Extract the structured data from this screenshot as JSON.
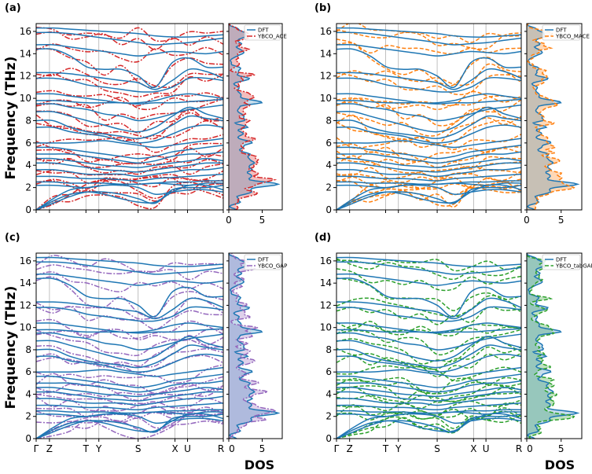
{
  "ylabel": "Frequency (THz)",
  "dos_label": "DOS",
  "panels": [
    {
      "label": "(a)",
      "series": [
        "DFT",
        "YBCO_ACE"
      ]
    },
    {
      "label": "(b)",
      "series": [
        "DFT",
        "YBCO_MACE"
      ]
    },
    {
      "label": "(c)",
      "series": [
        "DFT",
        "YBCO_GAP"
      ]
    },
    {
      "label": "(d)",
      "series": [
        "DFT",
        "YBCO_tabGAP"
      ]
    }
  ],
  "chart_data": [
    {
      "type": "line",
      "panel": "(a)",
      "ylabel": "Frequency (THz)",
      "xlabel": "",
      "ylim": [
        0,
        16.7
      ],
      "y_ticks": [
        0,
        2,
        4,
        6,
        8,
        10,
        12,
        14,
        16
      ],
      "x_ticks": [],
      "dos_xlim": [
        0,
        8
      ],
      "dos_ticks": [
        0,
        5
      ],
      "dos_xlabel": "DOS",
      "legend": "top-right",
      "series": [
        {
          "name": "DFT",
          "color": "#1f77b4",
          "style": "solid"
        },
        {
          "name": "YBCO_ACE",
          "color": "#d62728",
          "style": "dashdot"
        }
      ]
    },
    {
      "type": "line",
      "panel": "(b)",
      "ylabel": "",
      "xlabel": "",
      "ylim": [
        0,
        16.7
      ],
      "y_ticks": [
        0,
        2,
        4,
        6,
        8,
        10,
        12,
        14,
        16
      ],
      "x_ticks": [],
      "dos_xlim": [
        0,
        8
      ],
      "dos_ticks": [
        0,
        5
      ],
      "dos_xlabel": "",
      "legend": "top-right",
      "series": [
        {
          "name": "DFT",
          "color": "#1f77b4",
          "style": "solid"
        },
        {
          "name": "YBCO_MACE",
          "color": "#ff7f0e",
          "style": "dashed"
        }
      ]
    },
    {
      "type": "line",
      "panel": "(c)",
      "ylabel": "Frequency (THz)",
      "xlabel": "",
      "ylim": [
        0,
        16.7
      ],
      "y_ticks": [
        0,
        2,
        4,
        6,
        8,
        10,
        12,
        14,
        16
      ],
      "x_ticks": [
        "Γ",
        "Z",
        "T",
        "Y",
        "S",
        "X",
        "U",
        "R"
      ],
      "dos_xlim": [
        0,
        8
      ],
      "dos_ticks": [
        0,
        5
      ],
      "dos_xlabel": "DOS",
      "legend": "top-right",
      "series": [
        {
          "name": "DFT",
          "color": "#1f77b4",
          "style": "solid"
        },
        {
          "name": "YBCO_GAP",
          "color": "#9467bd",
          "style": "dashdot"
        }
      ]
    },
    {
      "type": "line",
      "panel": "(d)",
      "ylabel": "",
      "xlabel": "",
      "ylim": [
        0,
        16.7
      ],
      "y_ticks": [
        0,
        2,
        4,
        6,
        8,
        10,
        12,
        14,
        16
      ],
      "x_ticks": [
        "Γ",
        "Z",
        "T",
        "Y",
        "S",
        "X",
        "U",
        "R"
      ],
      "dos_xlim": [
        0,
        8
      ],
      "dos_ticks": [
        0,
        5
      ],
      "dos_xlabel": "DOS",
      "legend": "top-right",
      "series": [
        {
          "name": "DFT",
          "color": "#1f77b4",
          "style": "solid"
        },
        {
          "name": "YBCO_tabGAP",
          "color": "#2ca02c",
          "style": "dashed"
        }
      ]
    }
  ],
  "dft_bands": [
    [
      16.3,
      16.3,
      16.2,
      16.1,
      16.0,
      15.9,
      15.8,
      15.6,
      15.5,
      15.5,
      15.6,
      15.7
    ],
    [
      15.9,
      15.9,
      15.8,
      15.6,
      15.4,
      15.2,
      15.0,
      14.8,
      14.9,
      15.0,
      15.2,
      15.4
    ],
    [
      14.8,
      14.8,
      14.6,
      14.4,
      14.2,
      14.0,
      13.8,
      14.0,
      14.2,
      14.1,
      14.0,
      14.2
    ],
    [
      14.4,
      14.4,
      13.8,
      12.8,
      12.6,
      12.6,
      12.0,
      11.0,
      13.2,
      13.6,
      12.8,
      12.8
    ],
    [
      12.3,
      12.3,
      12.2,
      12.0,
      11.8,
      11.6,
      11.4,
      10.8,
      11.6,
      12.6,
      12.4,
      11.8
    ],
    [
      11.8,
      11.8,
      11.6,
      11.2,
      11.0,
      10.8,
      10.6,
      10.6,
      11.0,
      11.8,
      11.8,
      11.6
    ],
    [
      10.4,
      10.4,
      10.2,
      10.0,
      9.8,
      9.6,
      9.6,
      9.8,
      10.2,
      10.4,
      10.2,
      10.0
    ],
    [
      9.8,
      9.8,
      9.7,
      9.6,
      9.6,
      9.6,
      9.5,
      9.6,
      9.6,
      9.7,
      9.8,
      9.9
    ],
    [
      9.5,
      9.5,
      9.2,
      9.0,
      8.6,
      8.4,
      8.0,
      8.2,
      8.6,
      9.0,
      9.2,
      9.4
    ],
    [
      8.8,
      8.8,
      8.4,
      8.0,
      7.6,
      7.2,
      7.0,
      7.4,
      8.4,
      9.2,
      8.6,
      8.2
    ],
    [
      8.0,
      8.0,
      7.4,
      7.0,
      6.8,
      6.6,
      6.4,
      6.8,
      7.6,
      8.4,
      8.2,
      8.0
    ],
    [
      7.4,
      7.4,
      7.0,
      6.8,
      6.6,
      6.2,
      6.0,
      6.2,
      6.8,
      7.4,
      7.6,
      7.4
    ],
    [
      6.0,
      6.0,
      6.0,
      6.1,
      6.2,
      6.0,
      5.8,
      5.6,
      5.8,
      6.0,
      6.2,
      6.4
    ],
    [
      5.6,
      5.6,
      5.4,
      5.2,
      5.0,
      4.8,
      4.6,
      4.8,
      5.2,
      5.4,
      5.6,
      5.8
    ],
    [
      5.0,
      5.0,
      5.0,
      4.8,
      4.6,
      4.4,
      4.2,
      4.4,
      4.8,
      5.0,
      5.0,
      5.2
    ],
    [
      4.6,
      4.6,
      4.4,
      4.2,
      4.0,
      3.9,
      3.8,
      4.0,
      4.2,
      4.4,
      4.6,
      4.4
    ],
    [
      4.2,
      4.2,
      4.0,
      3.8,
      3.6,
      3.5,
      3.4,
      3.6,
      3.8,
      4.0,
      4.2,
      4.2
    ],
    [
      3.6,
      3.6,
      3.4,
      3.2,
      3.2,
      3.2,
      3.0,
      3.2,
      3.4,
      3.6,
      3.6,
      3.8
    ],
    [
      3.0,
      3.0,
      2.9,
      2.8,
      2.8,
      2.7,
      2.6,
      2.8,
      2.9,
      3.0,
      3.1,
      3.2
    ],
    [
      2.5,
      2.5,
      2.4,
      2.4,
      2.4,
      2.3,
      2.3,
      2.4,
      2.5,
      2.5,
      2.6,
      2.6
    ],
    [
      2.2,
      2.2,
      2.1,
      2.0,
      2.2,
      2.3,
      2.3,
      2.4,
      2.3,
      2.2,
      2.4,
      2.4
    ],
    [
      0.0,
      0.8,
      1.4,
      1.6,
      1.6,
      1.4,
      1.0,
      0.6,
      1.8,
      2.0,
      2.0,
      2.2
    ],
    [
      0.0,
      1.0,
      1.8,
      2.0,
      2.2,
      2.2,
      2.0,
      1.4,
      1.6,
      1.8,
      1.8,
      1.6
    ],
    [
      0.0,
      0.6,
      1.2,
      1.6,
      1.4,
      1.0,
      0.7,
      0.7,
      1.6,
      2.2,
      2.2,
      1.8
    ]
  ]
}
